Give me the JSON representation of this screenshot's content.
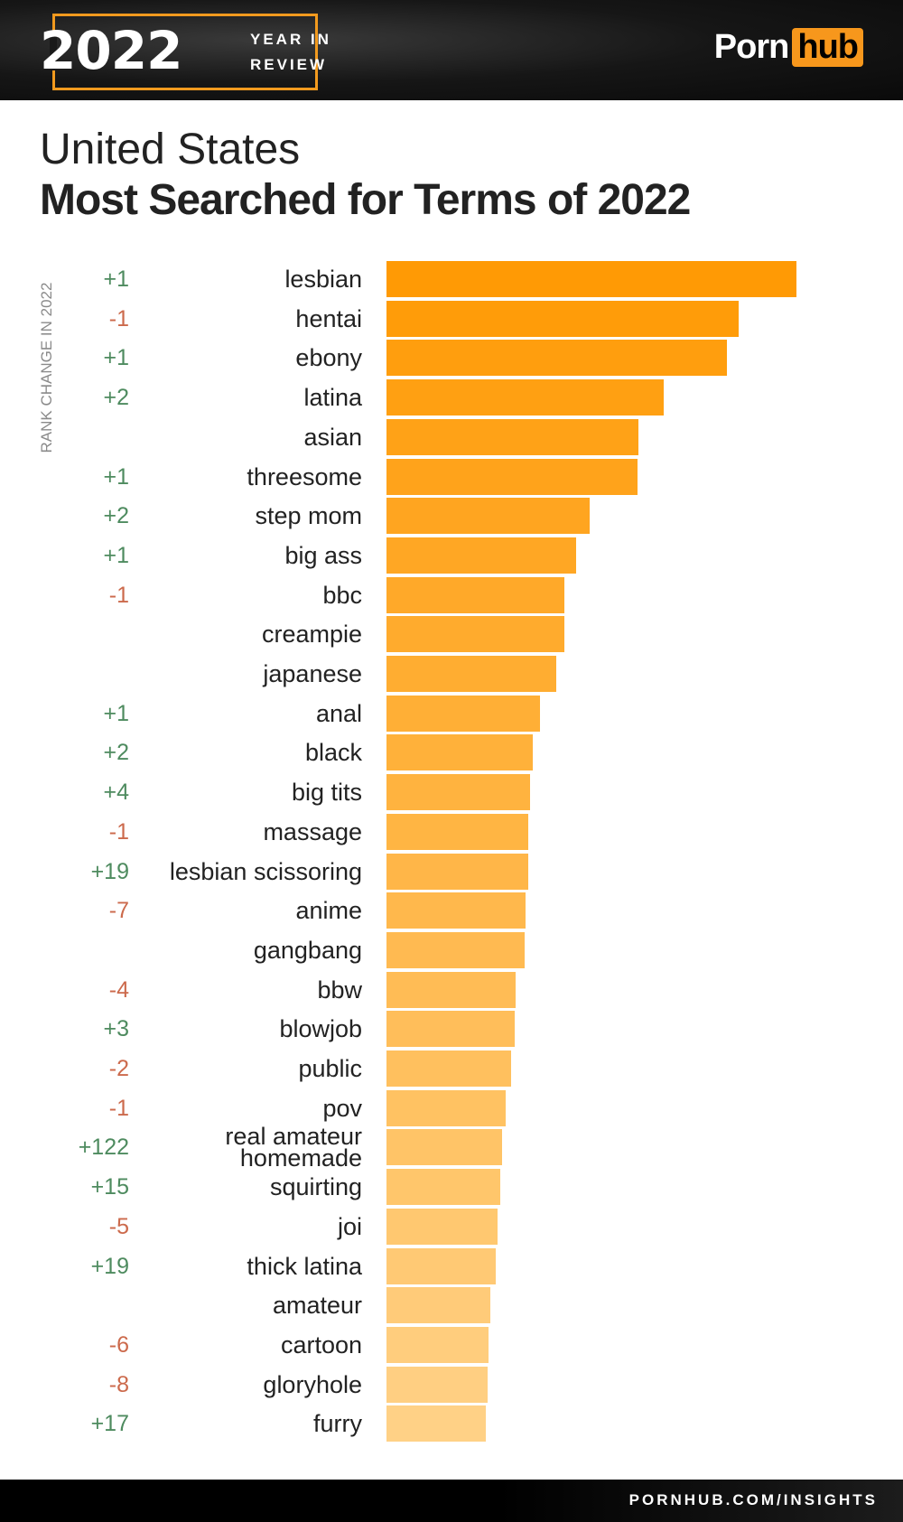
{
  "header": {
    "year": "2022",
    "year_sub_1": "YEAR IN",
    "year_sub_2": "REVIEW",
    "logo_part1": "Porn",
    "logo_part2": "hub"
  },
  "footer": {
    "url": "PORNHUB.COM/INSIGHTS"
  },
  "colors": {
    "bar_start": "#ff9a05",
    "bar_end": "#ffd186",
    "positive": "#4e8b5f",
    "negative": "#cc6a4c"
  },
  "chart_data": {
    "type": "bar",
    "orientation": "horizontal",
    "title": "Most Searched for Terms of 2022",
    "subtitle": "United States",
    "ylabel": "RANK CHANGE IN 2022",
    "value_unit": "relative search volume (lesbian = 100, estimated from bar length)",
    "categories": [
      "lesbian",
      "hentai",
      "ebony",
      "latina",
      "asian",
      "threesome",
      "step mom",
      "big ass",
      "bbc",
      "creampie",
      "japanese",
      "anal",
      "black",
      "big tits",
      "massage",
      "lesbian scissoring",
      "anime",
      "gangbang",
      "bbw",
      "blowjob",
      "public",
      "pov",
      "real amateur homemade",
      "squirting",
      "joi",
      "thick latina",
      "amateur",
      "cartoon",
      "gloryhole",
      "furry"
    ],
    "values": [
      100,
      86,
      83,
      67.6,
      61.5,
      61.2,
      49.6,
      46.3,
      43.5,
      43.3,
      41.4,
      37.4,
      35.7,
      35,
      34.5,
      34.5,
      34,
      33.8,
      31.4,
      31.2,
      30.3,
      29.1,
      28.1,
      27.7,
      27.2,
      26.7,
      25.3,
      24.8,
      24.6,
      24.3
    ],
    "rank_change": [
      "+1",
      "-1",
      "+1",
      "+2",
      "",
      "+1",
      "+2",
      "+1",
      "-1",
      "",
      "",
      "+1",
      "+2",
      "+4",
      "-1",
      "+19",
      "-7",
      "",
      "-4",
      "+3",
      "-2",
      "-1",
      "+122",
      "+15",
      "-5",
      "+19",
      "",
      "-6",
      "-8",
      "+17"
    ],
    "xlim": [
      0,
      100
    ]
  }
}
